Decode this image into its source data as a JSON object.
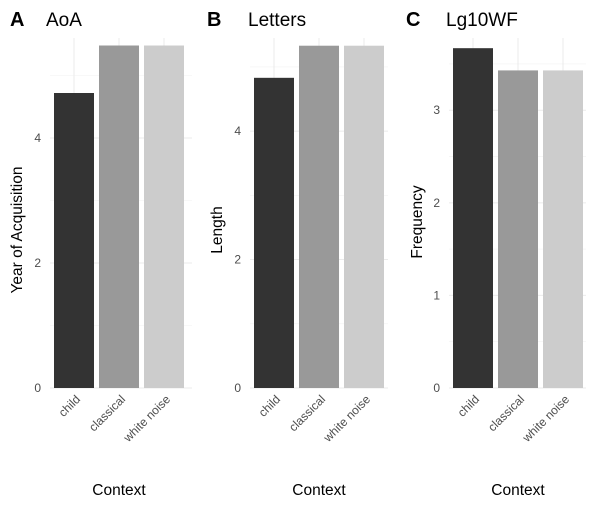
{
  "chart_data": [
    {
      "type": "bar",
      "panel_label": "A",
      "title": "AoA",
      "xlabel": "Context",
      "ylabel": "Year of Acquisition",
      "categories": [
        "child",
        "classical",
        "white noise"
      ],
      "values": [
        4.72,
        5.48,
        5.48
      ],
      "ylim": [
        0,
        5.6
      ],
      "yticks": [
        0,
        2,
        4
      ],
      "colors": [
        "#333333",
        "#999999",
        "#cccccc"
      ],
      "grid": true
    },
    {
      "type": "bar",
      "panel_label": "B",
      "title": "Letters",
      "xlabel": "Context",
      "ylabel": "Length",
      "categories": [
        "child",
        "classical",
        "white noise"
      ],
      "values": [
        4.83,
        5.33,
        5.33
      ],
      "ylim": [
        0,
        5.45
      ],
      "yticks": [
        0,
        2,
        4
      ],
      "colors": [
        "#333333",
        "#999999",
        "#cccccc"
      ],
      "grid": true
    },
    {
      "type": "bar",
      "panel_label": "C",
      "title": "Lg10WF",
      "xlabel": "Context",
      "ylabel": "Frequency",
      "categories": [
        "child",
        "classical",
        "white noise"
      ],
      "values": [
        3.67,
        3.43,
        3.43
      ],
      "ylim": [
        0,
        3.78
      ],
      "yticks": [
        0,
        1,
        2,
        3
      ],
      "colors": [
        "#333333",
        "#999999",
        "#cccccc"
      ],
      "grid": true
    }
  ]
}
